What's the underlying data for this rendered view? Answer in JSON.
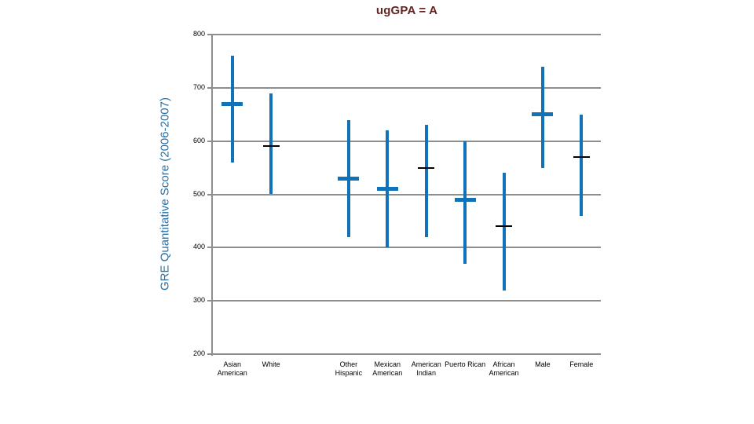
{
  "chart_data": {
    "type": "hilo-bar",
    "title": "ugGPA = A",
    "ylabel": "GRE Quantitative Score (2006-2007)",
    "ylim": [
      200,
      800
    ],
    "yticks": [
      800,
      700,
      600,
      500,
      400,
      300,
      200
    ],
    "grid": true,
    "legend": "none",
    "num_slots": 10,
    "points": [
      {
        "slot": 0,
        "label": "Asian American",
        "high": 760,
        "mean": 670,
        "low": 560,
        "marker": "blue-bold"
      },
      {
        "slot": 1,
        "label": "White",
        "high": 690,
        "mean": 590,
        "low": 500,
        "marker": "black-thin"
      },
      {
        "slot": 3,
        "label": "Other Hispanic",
        "high": 640,
        "mean": 530,
        "low": 420,
        "marker": "blue-bold"
      },
      {
        "slot": 4,
        "label": "Mexican American",
        "high": 620,
        "mean": 510,
        "low": 400,
        "marker": "blue-bold"
      },
      {
        "slot": 5,
        "label": "American Indian",
        "high": 630,
        "mean": 550,
        "low": 420,
        "marker": "black-thin"
      },
      {
        "slot": 6,
        "label": "Puerto Rican",
        "high": 600,
        "mean": 490,
        "low": 370,
        "marker": "blue-bold"
      },
      {
        "slot": 7,
        "label": "African American",
        "high": 540,
        "mean": 440,
        "low": 320,
        "marker": "black-thin"
      },
      {
        "slot": 8,
        "label": "Male",
        "high": 740,
        "mean": 650,
        "low": 550,
        "marker": "blue-bold"
      },
      {
        "slot": 9,
        "label": "Female",
        "high": 650,
        "mean": 570,
        "low": 460,
        "marker": "black-thin"
      }
    ],
    "colors": {
      "bar": "#1272B8",
      "mean_black": "#000000",
      "grid": "#8E8E8E",
      "title": "#632423",
      "ylabel": "#2470A8",
      "tick_text": "#000000"
    }
  }
}
